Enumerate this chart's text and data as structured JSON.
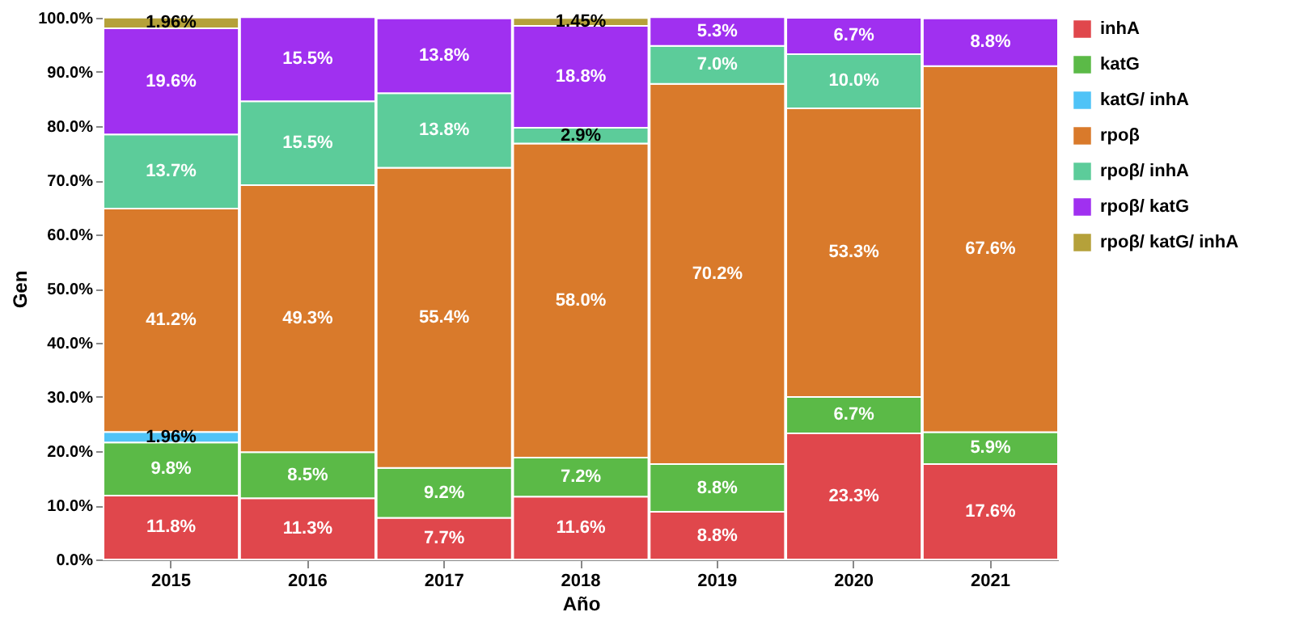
{
  "chart_data": {
    "type": "bar",
    "stacked": true,
    "xlabel": "Año",
    "ylabel": "Gen",
    "categories": [
      "2015",
      "2016",
      "2017",
      "2018",
      "2019",
      "2020",
      "2021"
    ],
    "ylim": [
      0,
      100
    ],
    "yticks": [
      {
        "value": 0,
        "label": "0.0%"
      },
      {
        "value": 10,
        "label": "10.0%"
      },
      {
        "value": 20,
        "label": "20.0%"
      },
      {
        "value": 30,
        "label": "30.0%"
      },
      {
        "value": 40,
        "label": "40.0%"
      },
      {
        "value": 50,
        "label": "50.0%"
      },
      {
        "value": 60,
        "label": "60.0%"
      },
      {
        "value": 70,
        "label": "70.0%"
      },
      {
        "value": 80,
        "label": "80.0%"
      },
      {
        "value": 90,
        "label": "90.0%"
      },
      {
        "value": 100,
        "label": "100.0%"
      }
    ],
    "legend": "top right",
    "series": [
      {
        "name": "inhA",
        "color": "#e0474c",
        "values": [
          11.8,
          11.3,
          7.7,
          11.6,
          8.8,
          23.3,
          17.6
        ],
        "value_labels": [
          "11.8%",
          "11.3%",
          "7.7%",
          "11.6%",
          "8.8%",
          "23.3%",
          "17.6%"
        ]
      },
      {
        "name": "katG",
        "color": "#5bba47",
        "values": [
          9.8,
          8.5,
          9.2,
          7.2,
          8.8,
          6.7,
          5.9
        ],
        "value_labels": [
          "9.8%",
          "8.5%",
          "9.2%",
          "7.2%",
          "8.8%",
          "6.7%",
          "5.9%"
        ]
      },
      {
        "name": "katG/ inhA",
        "color": "#4fc3f7",
        "values": [
          1.96,
          null,
          null,
          null,
          null,
          null,
          null
        ],
        "value_labels": [
          "1.96%",
          null,
          null,
          null,
          null,
          null,
          null
        ]
      },
      {
        "name": "rpoβ",
        "color": "#d97a2b",
        "values": [
          41.2,
          49.3,
          55.4,
          58.0,
          70.2,
          53.3,
          67.6
        ],
        "value_labels": [
          "41.2%",
          "49.3%",
          "55.4%",
          "58.0%",
          "70.2%",
          "53.3%",
          "67.6%"
        ]
      },
      {
        "name": "rpoβ/ inhA",
        "color": "#5ccc9a",
        "values": [
          13.7,
          15.5,
          13.8,
          2.9,
          7.0,
          10.0,
          null
        ],
        "value_labels": [
          "13.7%",
          "15.5%",
          "13.8%",
          "2.9%",
          "7.0%",
          "10.0%",
          null
        ]
      },
      {
        "name": "rpoβ/ katG",
        "color": "#a030f0",
        "values": [
          19.6,
          15.5,
          13.8,
          18.8,
          5.3,
          6.7,
          8.8
        ],
        "value_labels": [
          "19.6%",
          "15.5%",
          "13.8%",
          "18.8%",
          "5.3%",
          "6.7%",
          "8.8%"
        ]
      },
      {
        "name": "rpoβ/ katG/ inhA",
        "color": "#b5a13a",
        "values": [
          1.96,
          null,
          null,
          1.45,
          null,
          null,
          null
        ],
        "value_labels": [
          "1.96%",
          null,
          null,
          "1.45%",
          null,
          null,
          null
        ]
      }
    ]
  }
}
